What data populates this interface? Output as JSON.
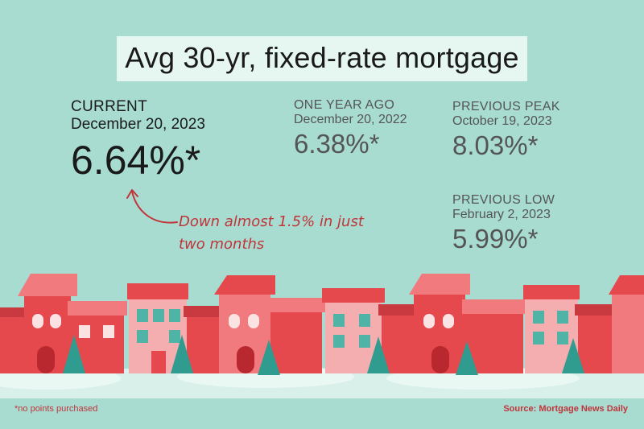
{
  "title": "Avg 30-yr, fixed-rate mortgage",
  "current": {
    "label": "CURRENT",
    "date": "December 20, 2023",
    "rate": "6.64%*"
  },
  "year_ago": {
    "label": "ONE YEAR AGO",
    "date": "December 20, 2022",
    "rate": "6.38%*"
  },
  "previous_peak": {
    "label": "PREVIOUS PEAK",
    "date": "October 19, 2023",
    "rate": "8.03%*"
  },
  "previous_low": {
    "label": "PREVIOUS LOW",
    "date": "February 2, 2023",
    "rate": "5.99%*"
  },
  "annotation": {
    "line1": "Down almost 1.5% in just",
    "line2": "two months"
  },
  "footnote": "*no points purchased",
  "source": "Source: Mortgage News Daily",
  "colors": {
    "background": "#a8dcd1",
    "title_band": "#e6f7f2",
    "accent_red": "#c0353a",
    "house_red": "#e5484d",
    "house_pink": "#f4aeb0",
    "tree_teal": "#2f9c8f"
  }
}
